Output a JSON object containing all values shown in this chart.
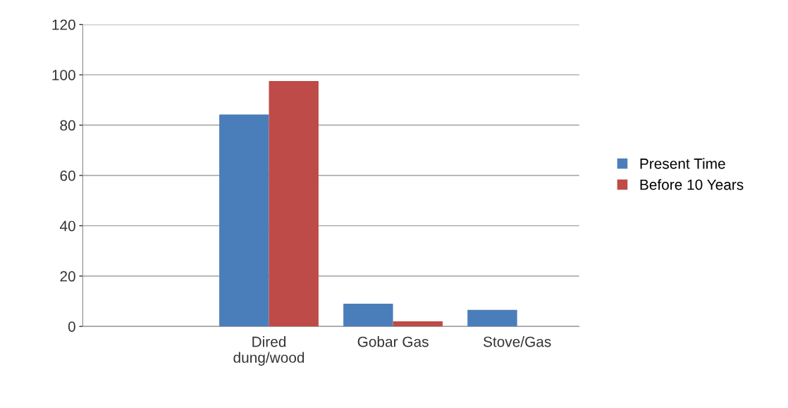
{
  "chart_data": {
    "type": "bar",
    "categories": [
      null,
      "Dired\ndung/wood",
      "Gobar Gas",
      "Stove/Gas"
    ],
    "series": [
      {
        "name": "Present Time",
        "color": "#4a7ebb",
        "values": [
          null,
          84.2,
          9,
          6.6
        ]
      },
      {
        "name": "Before 10 Years",
        "color": "#be4b48",
        "values": [
          null,
          97.5,
          2,
          null
        ]
      }
    ],
    "ylim": [
      0,
      120
    ],
    "yticks": [
      0,
      20,
      40,
      60,
      80,
      100,
      120
    ],
    "grid": "y",
    "legend": "right"
  }
}
